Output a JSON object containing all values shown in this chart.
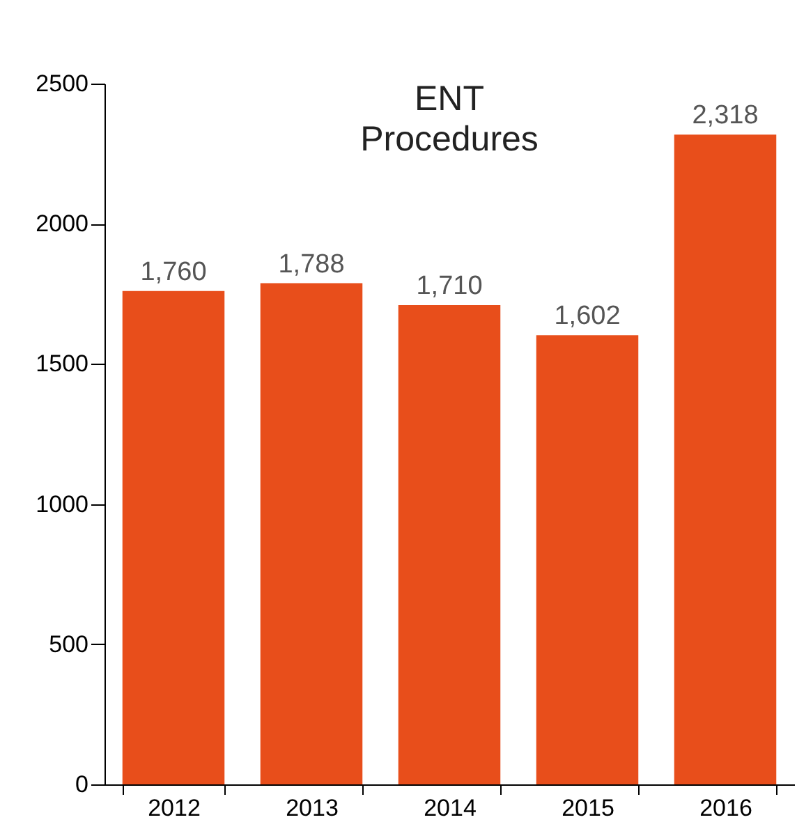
{
  "chart_data": {
    "type": "bar",
    "title": "ENT Procedures",
    "categories": [
      "2012",
      "2013",
      "2014",
      "2015",
      "2016"
    ],
    "values": [
      1760,
      1788,
      1710,
      1602,
      2318
    ],
    "value_labels": [
      "1,760",
      "1,788",
      "1,710",
      "1,602",
      "2,318"
    ],
    "color": "#e84e1b",
    "ylim": [
      0,
      2500
    ],
    "yticks": [
      0,
      500,
      1000,
      1500,
      2000,
      2500
    ],
    "grid": false
  }
}
